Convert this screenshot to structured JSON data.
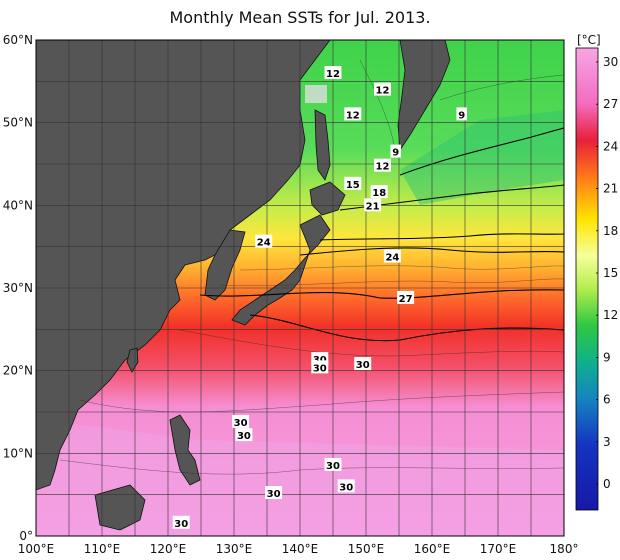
{
  "title": "Monthly Mean SSTs for Jul. 2013.",
  "colorbar": {
    "unit": "[°C]",
    "ticks": [
      "30",
      "27",
      "24",
      "21",
      "18",
      "15",
      "12",
      "9",
      "6",
      "3",
      "0"
    ]
  },
  "axes": {
    "lon_ticks": [
      "100°E",
      "110°E",
      "120°E",
      "130°E",
      "140°E",
      "150°E",
      "160°E",
      "170°E",
      "180°"
    ],
    "lat_ticks": [
      "60°N",
      "50°N",
      "40°N",
      "30°N",
      "20°N",
      "10°N",
      "0°"
    ]
  },
  "contour_labels": [
    {
      "text": "12",
      "lon": 145,
      "lat": 56.0
    },
    {
      "text": "12",
      "lon": 152.5,
      "lat": 54.0
    },
    {
      "text": "12",
      "lon": 148,
      "lat": 51.0
    },
    {
      "text": "9",
      "lon": 164.5,
      "lat": 51.0
    },
    {
      "text": "9",
      "lon": 154.5,
      "lat": 46.5
    },
    {
      "text": "12",
      "lon": 152.5,
      "lat": 44.8
    },
    {
      "text": "15",
      "lon": 148,
      "lat": 42.6
    },
    {
      "text": "18",
      "lon": 152,
      "lat": 41.6
    },
    {
      "text": "21",
      "lon": 151,
      "lat": 40.0
    },
    {
      "text": "24",
      "lon": 134.5,
      "lat": 35.6
    },
    {
      "text": "24",
      "lon": 154,
      "lat": 33.8
    },
    {
      "text": "27",
      "lon": 156,
      "lat": 28.8
    },
    {
      "text": "30",
      "lon": 143,
      "lat": 21.4
    },
    {
      "text": "30",
      "lon": 143,
      "lat": 20.4
    },
    {
      "text": "30",
      "lon": 149.5,
      "lat": 20.8
    },
    {
      "text": "30",
      "lon": 131,
      "lat": 13.8
    },
    {
      "text": "30",
      "lon": 131.5,
      "lat": 12.2
    },
    {
      "text": "30",
      "lon": 145,
      "lat": 8.6
    },
    {
      "text": "30",
      "lon": 147,
      "lat": 6.0
    },
    {
      "text": "30",
      "lon": 136,
      "lat": 5.2
    },
    {
      "text": "30",
      "lon": 122,
      "lat": 1.6
    }
  ]
}
